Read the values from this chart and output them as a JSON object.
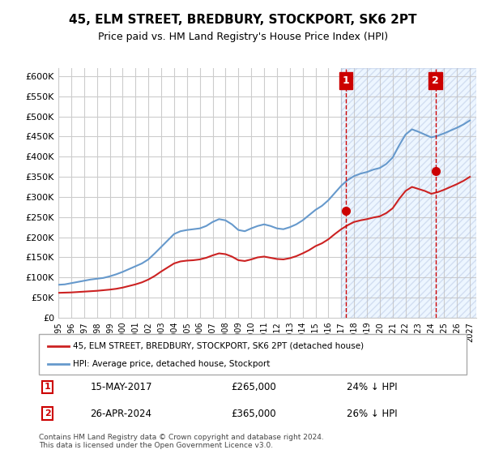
{
  "title": "45, ELM STREET, BREDBURY, STOCKPORT, SK6 2PT",
  "subtitle": "Price paid vs. HM Land Registry's House Price Index (HPI)",
  "ylabel": "",
  "xlabel": "",
  "ylim": [
    0,
    620000
  ],
  "yticks": [
    0,
    50000,
    100000,
    150000,
    200000,
    250000,
    300000,
    350000,
    400000,
    450000,
    500000,
    550000,
    600000
  ],
  "ytick_labels": [
    "£0",
    "£50K",
    "£100K",
    "£150K",
    "£200K",
    "£250K",
    "£300K",
    "£350K",
    "£400K",
    "£450K",
    "£500K",
    "£550K",
    "£600K"
  ],
  "hpi_color": "#6699cc",
  "price_color": "#cc2222",
  "marker1_color": "#cc0000",
  "marker2_color": "#cc0000",
  "annotation_box_color": "#cc0000",
  "background_color": "#ffffff",
  "grid_color": "#cccccc",
  "hatched_region_color": "#ddeeff",
  "legend_label_price": "45, ELM STREET, BREDBURY, STOCKPORT, SK6 2PT (detached house)",
  "legend_label_hpi": "HPI: Average price, detached house, Stockport",
  "annotation1_label": "1",
  "annotation1_date": "15-MAY-2017",
  "annotation1_price": "£265,000",
  "annotation1_pct": "24% ↓ HPI",
  "annotation2_label": "2",
  "annotation2_date": "26-APR-2024",
  "annotation2_price": "£365,000",
  "annotation2_pct": "26% ↓ HPI",
  "footnote": "Contains HM Land Registry data © Crown copyright and database right 2024.\nThis data is licensed under the Open Government Licence v3.0.",
  "marker1_x": 2017.37,
  "marker1_y": 265000,
  "marker2_x": 2024.32,
  "marker2_y": 365000,
  "hpi_years": [
    1995,
    1995.5,
    1996,
    1996.5,
    1997,
    1997.5,
    1998,
    1998.5,
    1999,
    1999.5,
    2000,
    2000.5,
    2001,
    2001.5,
    2002,
    2002.5,
    2003,
    2003.5,
    2004,
    2004.5,
    2005,
    2005.5,
    2006,
    2006.5,
    2007,
    2007.5,
    2008,
    2008.5,
    2009,
    2009.5,
    2010,
    2010.5,
    2011,
    2011.5,
    2012,
    2012.5,
    2013,
    2013.5,
    2014,
    2014.5,
    2015,
    2015.5,
    2016,
    2016.5,
    2017,
    2017.5,
    2018,
    2018.5,
    2019,
    2019.5,
    2020,
    2020.5,
    2021,
    2021.5,
    2022,
    2022.5,
    2023,
    2023.5,
    2024,
    2024.5,
    2025,
    2025.5,
    2026,
    2026.5,
    2027
  ],
  "hpi_values": [
    82000,
    83000,
    86000,
    89000,
    92000,
    95000,
    97000,
    99000,
    103000,
    108000,
    114000,
    121000,
    128000,
    135000,
    145000,
    160000,
    176000,
    192000,
    208000,
    215000,
    218000,
    220000,
    222000,
    228000,
    238000,
    245000,
    242000,
    232000,
    218000,
    215000,
    222000,
    228000,
    232000,
    228000,
    222000,
    220000,
    225000,
    232000,
    242000,
    255000,
    268000,
    278000,
    292000,
    310000,
    328000,
    342000,
    352000,
    358000,
    362000,
    368000,
    372000,
    382000,
    398000,
    428000,
    455000,
    468000,
    462000,
    455000,
    448000,
    452000,
    458000,
    465000,
    472000,
    480000,
    490000
  ],
  "price_years": [
    1995,
    1995.5,
    1996,
    1996.5,
    1997,
    1997.5,
    1998,
    1998.5,
    1999,
    1999.5,
    2000,
    2000.5,
    2001,
    2001.5,
    2002,
    2002.5,
    2003,
    2003.5,
    2004,
    2004.5,
    2005,
    2005.5,
    2006,
    2006.5,
    2007,
    2007.5,
    2008,
    2008.5,
    2009,
    2009.5,
    2010,
    2010.5,
    2011,
    2011.5,
    2012,
    2012.5,
    2013,
    2013.5,
    2014,
    2014.5,
    2015,
    2015.5,
    2016,
    2016.5,
    2017,
    2017.5,
    2018,
    2018.5,
    2019,
    2019.5,
    2020,
    2020.5,
    2021,
    2021.5,
    2022,
    2022.5,
    2023,
    2023.5,
    2024,
    2024.5,
    2025,
    2025.5,
    2026,
    2026.5,
    2027
  ],
  "price_values": [
    62000,
    62500,
    63000,
    64000,
    65000,
    66000,
    67000,
    68500,
    70000,
    72000,
    75000,
    79000,
    83000,
    88000,
    95000,
    104000,
    115000,
    125000,
    135000,
    140000,
    142000,
    143000,
    145000,
    149000,
    155000,
    160000,
    158000,
    152000,
    143000,
    141000,
    145000,
    150000,
    152000,
    149000,
    146000,
    145000,
    148000,
    153000,
    160000,
    168000,
    178000,
    185000,
    195000,
    208000,
    220000,
    230000,
    238000,
    242000,
    245000,
    249000,
    252000,
    260000,
    272000,
    295000,
    315000,
    325000,
    320000,
    315000,
    308000,
    312000,
    318000,
    325000,
    332000,
    340000,
    350000
  ],
  "hatched_start": 2017.0,
  "hatched_end": 2027.5,
  "xmin": 1995,
  "xmax": 2027.5
}
